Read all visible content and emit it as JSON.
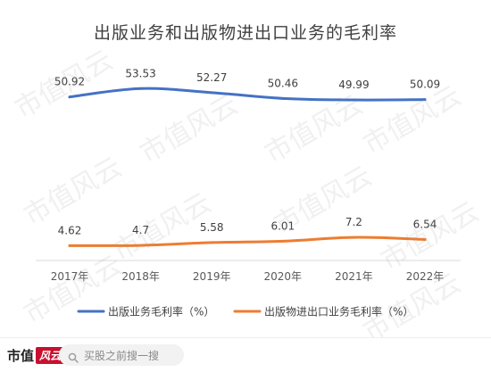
{
  "chart_data": {
    "type": "line",
    "title": "出版业务和出版物进出口业务的毛利率",
    "categories": [
      "2017年",
      "2018年",
      "2019年",
      "2020年",
      "2021年",
      "2022年"
    ],
    "series": [
      {
        "name": "出版业务毛利率（%）",
        "values": [
          50.92,
          53.53,
          52.27,
          50.46,
          49.99,
          50.09
        ],
        "labels": [
          "50.92",
          "53.53",
          "52.27",
          "50.46",
          "49.99",
          "50.09"
        ],
        "color": "#4472c4"
      },
      {
        "name": "出版物进出口业务毛利率（%）",
        "values": [
          4.62,
          4.7,
          5.58,
          6.01,
          7.2,
          6.54
        ],
        "labels": [
          "4.62",
          "4.7",
          "5.58",
          "6.01",
          "7.2",
          "6.54"
        ],
        "color": "#ed7d31"
      }
    ],
    "ylim": [
      0,
      60
    ],
    "xlabel": "",
    "ylabel": "",
    "grid": false,
    "legend_position": "bottom"
  },
  "watermark_text": "市值风云",
  "footer": {
    "brand_name": "市值",
    "brand_badge": "风云",
    "search_placeholder": "买股之前搜一搜"
  }
}
